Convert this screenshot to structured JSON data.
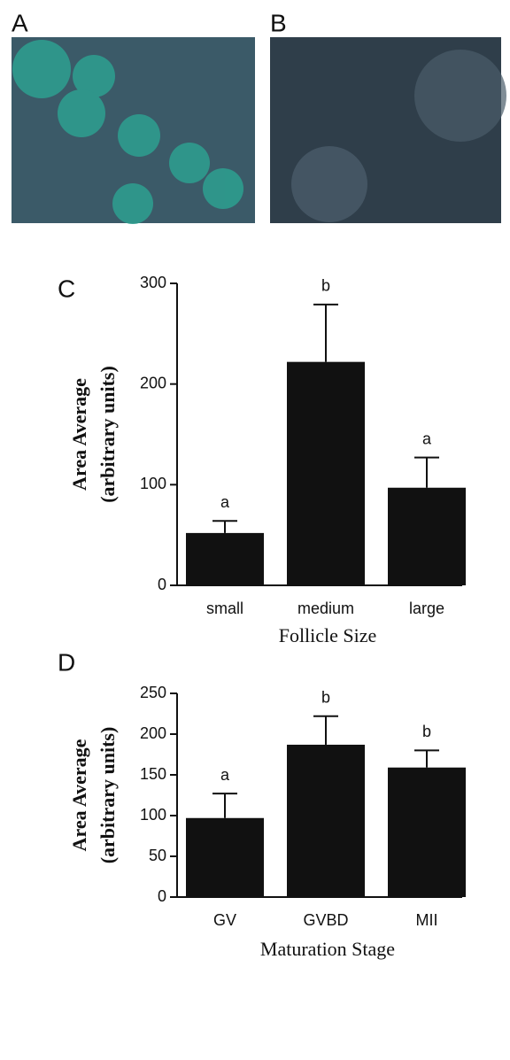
{
  "panels": [
    {
      "label": "A"
    },
    {
      "label": "B"
    }
  ],
  "chart_data": [
    {
      "type": "bar",
      "panel_label": "C",
      "ylabel": [
        "Area Average",
        "(arbitrary units)"
      ],
      "xlabel": "Follicle Size",
      "categories": [
        "small",
        "medium",
        "large"
      ],
      "values": [
        52,
        222,
        97
      ],
      "errors": [
        12,
        57,
        30
      ],
      "letters": [
        "a",
        "b",
        "a"
      ],
      "color": "#111111",
      "ylim": [
        0,
        300
      ],
      "yticks": [
        0,
        100,
        200,
        300
      ]
    },
    {
      "type": "bar",
      "panel_label": "D",
      "ylabel": [
        "Area Average",
        "(arbitrary units)"
      ],
      "xlabel": "Maturation Stage",
      "categories": [
        "GV",
        "GVBD",
        "MII"
      ],
      "values": [
        97,
        187,
        159
      ],
      "errors": [
        30,
        35,
        21
      ],
      "letters": [
        "a",
        "b",
        "b"
      ],
      "color": "#111111",
      "ylim": [
        0,
        250
      ],
      "yticks": [
        0,
        50,
        100,
        150,
        200,
        250
      ]
    }
  ]
}
